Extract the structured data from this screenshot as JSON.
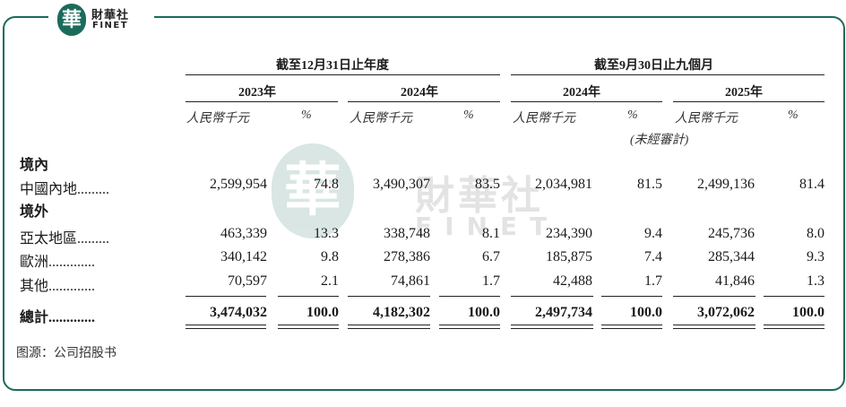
{
  "logo": {
    "seal_char": "華",
    "cn_name": "財華社",
    "en_name": "FINET"
  },
  "watermark": {
    "seal_char": "華",
    "cn_name": "財華社",
    "en_name": "FINET"
  },
  "table": {
    "group_headers": [
      "截至12月31日止年度",
      "截至9月30日止九個月"
    ],
    "years": [
      "2023年",
      "2024年",
      "2024年",
      "2025年"
    ],
    "unit_labels": [
      "人民幣千元",
      "%",
      "人民幣千元",
      "%",
      "人民幣千元",
      "%",
      "人民幣千元",
      "%"
    ],
    "unaudited_note": "(未經審計)",
    "section_domestic": "境內",
    "section_overseas": "境外",
    "rows": [
      {
        "label": "中國內地.........",
        "values": [
          "2,599,954",
          "74.8",
          "3,490,307",
          "83.5",
          "2,034,981",
          "81.5",
          "2,499,136",
          "81.4"
        ]
      },
      {
        "label": "亞太地區.........",
        "values": [
          "463,339",
          "13.3",
          "338,748",
          "8.1",
          "234,390",
          "9.4",
          "245,736",
          "8.0"
        ]
      },
      {
        "label": "歐洲.............",
        "values": [
          "340,142",
          "9.8",
          "278,386",
          "6.7",
          "185,875",
          "7.4",
          "285,344",
          "9.3"
        ]
      },
      {
        "label": "其他.............",
        "values": [
          "70,597",
          "2.1",
          "74,861",
          "1.7",
          "42,488",
          "1.7",
          "41,846",
          "1.3"
        ]
      }
    ],
    "total": {
      "label": "總計.............",
      "values": [
        "3,474,032",
        "100.0",
        "4,182,302",
        "100.0",
        "2,497,734",
        "100.0",
        "3,072,062",
        "100.0"
      ]
    }
  },
  "source": "图源：公司招股书",
  "colors": {
    "brand": "#1b6b5a"
  }
}
